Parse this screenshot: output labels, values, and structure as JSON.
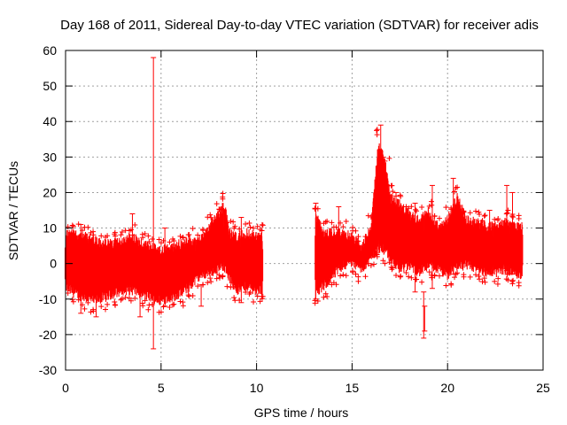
{
  "chart_data": {
    "type": "scatter",
    "title": "Day 168 of 2011, Sidereal Day-to-day VTEC variation (SDTVAR) for receiver adis",
    "xlabel": "GPS time / hours",
    "ylabel": "SDTVAR / TECUs",
    "xlim": [
      0,
      25
    ],
    "ylim": [
      -30,
      60
    ],
    "x_ticks": [
      0,
      5,
      10,
      15,
      20,
      25
    ],
    "y_ticks": [
      -30,
      -20,
      -10,
      0,
      10,
      20,
      30,
      40,
      50,
      60
    ],
    "grid": true,
    "series": [
      {
        "name": "SDTVAR",
        "color": "#ff0000",
        "marker": "plus-errorbar",
        "note": "dense point cloud with error bars; envelope sampled per hour (center, lower, upper)",
        "segments": [
          {
            "x_start": 0.0,
            "x_end": 10.3
          },
          {
            "x_start": 13.1,
            "x_end": 23.9
          }
        ],
        "envelope": [
          {
            "x": 0.0,
            "center": 0,
            "low": -8,
            "high": 10
          },
          {
            "x": 0.5,
            "center": 1,
            "low": -10,
            "high": 10
          },
          {
            "x": 1.0,
            "center": 0,
            "low": -11,
            "high": 9
          },
          {
            "x": 1.5,
            "center": -1,
            "low": -12,
            "high": 8
          },
          {
            "x": 2.0,
            "center": -2,
            "low": -11,
            "high": 7
          },
          {
            "x": 2.5,
            "center": -2,
            "low": -10,
            "high": 7
          },
          {
            "x": 3.0,
            "center": -1,
            "low": -9,
            "high": 8
          },
          {
            "x": 3.5,
            "center": 0,
            "low": -9,
            "high": 9
          },
          {
            "x": 4.0,
            "center": 0,
            "low": -10,
            "high": 7
          },
          {
            "x": 4.5,
            "center": -1,
            "low": -11,
            "high": 6
          },
          {
            "x": 5.0,
            "center": -2,
            "low": -12,
            "high": 5
          },
          {
            "x": 5.5,
            "center": -2,
            "low": -11,
            "high": 6
          },
          {
            "x": 6.0,
            "center": -1,
            "low": -10,
            "high": 7
          },
          {
            "x": 6.5,
            "center": -1,
            "low": -8,
            "high": 8
          },
          {
            "x": 7.0,
            "center": 0,
            "low": -5,
            "high": 8
          },
          {
            "x": 7.5,
            "center": 1,
            "low": -4,
            "high": 12
          },
          {
            "x": 8.0,
            "center": 3,
            "low": -3,
            "high": 15
          },
          {
            "x": 8.3,
            "center": 4,
            "low": -2,
            "high": 18
          },
          {
            "x": 8.6,
            "center": 1,
            "low": -6,
            "high": 10
          },
          {
            "x": 9.0,
            "center": 0,
            "low": -9,
            "high": 9
          },
          {
            "x": 9.5,
            "center": 1,
            "low": -8,
            "high": 10
          },
          {
            "x": 10.0,
            "center": 0,
            "low": -9,
            "high": 9
          },
          {
            "x": 10.3,
            "center": 0,
            "low": -9,
            "high": 9
          },
          {
            "x": 13.1,
            "center": 2,
            "low": -10,
            "high": 15
          },
          {
            "x": 13.5,
            "center": 2,
            "low": -8,
            "high": 10
          },
          {
            "x": 14.0,
            "center": 4,
            "low": -5,
            "high": 10
          },
          {
            "x": 14.5,
            "center": 5,
            "low": -2,
            "high": 10
          },
          {
            "x": 15.0,
            "center": 4,
            "low": -1,
            "high": 9
          },
          {
            "x": 15.5,
            "center": 1,
            "low": -3,
            "high": 6
          },
          {
            "x": 16.0,
            "center": 5,
            "low": 0,
            "high": 12
          },
          {
            "x": 16.4,
            "center": 12,
            "low": 3,
            "high": 36
          },
          {
            "x": 16.8,
            "center": 10,
            "low": 2,
            "high": 28
          },
          {
            "x": 17.0,
            "center": 8,
            "low": 0,
            "high": 20
          },
          {
            "x": 17.5,
            "center": 7,
            "low": -3,
            "high": 18
          },
          {
            "x": 18.0,
            "center": 6,
            "low": -2,
            "high": 15
          },
          {
            "x": 18.5,
            "center": 5,
            "low": -4,
            "high": 14
          },
          {
            "x": 19.0,
            "center": 4,
            "low": -2,
            "high": 16
          },
          {
            "x": 19.5,
            "center": 5,
            "low": -3,
            "high": 12
          },
          {
            "x": 20.0,
            "center": 4,
            "low": -5,
            "high": 14
          },
          {
            "x": 20.5,
            "center": 7,
            "low": -2,
            "high": 20
          },
          {
            "x": 21.0,
            "center": 6,
            "low": -2,
            "high": 14
          },
          {
            "x": 21.5,
            "center": 4,
            "low": -3,
            "high": 13
          },
          {
            "x": 22.0,
            "center": 4,
            "low": -4,
            "high": 12
          },
          {
            "x": 22.5,
            "center": 4,
            "low": -4,
            "high": 12
          },
          {
            "x": 23.0,
            "center": 5,
            "low": -3,
            "high": 13
          },
          {
            "x": 23.5,
            "center": 5,
            "low": -4,
            "high": 12
          },
          {
            "x": 23.9,
            "center": 5,
            "low": -5,
            "high": 12
          }
        ],
        "outliers": [
          {
            "x": 4.6,
            "low": -24,
            "high": 58
          },
          {
            "x": 16.5,
            "low": 20,
            "high": 39
          },
          {
            "x": 18.75,
            "low": -21,
            "high": -8
          },
          {
            "x": 18.8,
            "low": -19,
            "high": -12
          },
          {
            "x": 3.5,
            "low": 8,
            "high": 14
          },
          {
            "x": 5.2,
            "low": -12,
            "high": 10
          },
          {
            "x": 0.8,
            "low": -14,
            "high": 11
          },
          {
            "x": 1.6,
            "low": -15,
            "high": -5
          },
          {
            "x": 3.9,
            "low": -15,
            "high": -8
          },
          {
            "x": 7.1,
            "low": -12,
            "high": -6
          },
          {
            "x": 9.2,
            "low": -11,
            "high": 13
          },
          {
            "x": 13.1,
            "low": -10,
            "high": 17
          },
          {
            "x": 14.3,
            "low": 4,
            "high": 16
          },
          {
            "x": 17.3,
            "low": 5,
            "high": 20
          },
          {
            "x": 18.3,
            "low": -8,
            "high": 17
          },
          {
            "x": 19.2,
            "low": -7,
            "high": 22
          },
          {
            "x": 20.3,
            "low": -3,
            "high": 24
          },
          {
            "x": 22.2,
            "low": -3,
            "high": 15
          },
          {
            "x": 23.1,
            "low": -2,
            "high": 22
          },
          {
            "x": 23.4,
            "low": -3,
            "high": 20
          }
        ]
      }
    ]
  }
}
